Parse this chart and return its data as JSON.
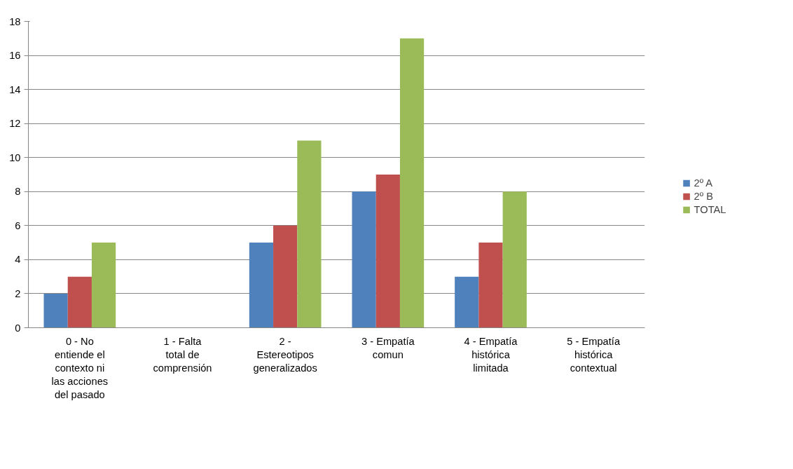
{
  "chart_data": {
    "type": "bar",
    "categories": [
      "0 - No entiende el contexto ni las acciones del pasado",
      "1 - Falta total de comprensión",
      "2 - Estereotipos generalizados",
      "3 - Empatía comun",
      "4 - Empatía histórica limitada",
      "5 - Empatía histórica contextual"
    ],
    "series": [
      {
        "name": "2º A",
        "color": "#4f81bd",
        "values": [
          2,
          0,
          5,
          8,
          3,
          0
        ]
      },
      {
        "name": "2º B",
        "color": "#c0504d",
        "values": [
          3,
          0,
          6,
          9,
          5,
          0
        ]
      },
      {
        "name": "TOTAL",
        "color": "#9bbb59",
        "values": [
          5,
          0,
          11,
          17,
          8,
          0
        ]
      }
    ],
    "ylim": [
      0,
      18
    ],
    "yticks": [
      0,
      2,
      4,
      6,
      8,
      10,
      12,
      14,
      16,
      18
    ],
    "grid": "y",
    "legend": "right"
  }
}
